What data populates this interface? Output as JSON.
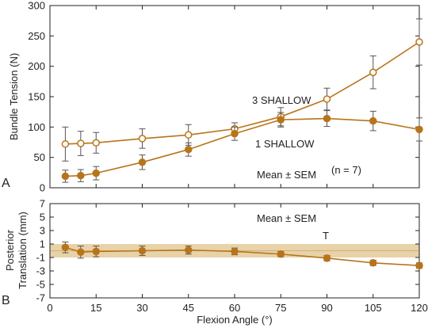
{
  "chart_data": [
    {
      "type": "line",
      "panel": "A",
      "ylabel": "Bundle Tension (N)",
      "xlabel": "",
      "xlim": [
        0,
        120
      ],
      "ylim": [
        0,
        300
      ],
      "xticks": [
        0,
        15,
        30,
        45,
        60,
        75,
        90,
        105,
        120
      ],
      "yticks": [
        0,
        50,
        100,
        150,
        200,
        250,
        300
      ],
      "series": [
        {
          "name": "3 SHALLOW",
          "marker": "open-circle",
          "color": "#b8741a",
          "x": [
            5,
            10,
            15,
            30,
            45,
            60,
            75,
            90,
            105,
            120
          ],
          "y": [
            72,
            73,
            74,
            81,
            87,
            97,
            117,
            146,
            190,
            240
          ],
          "err": [
            28,
            20,
            17,
            16,
            17,
            10,
            15,
            18,
            27,
            38
          ]
        },
        {
          "name": "1 SHALLOW",
          "marker": "filled-circle",
          "color": "#b8741a",
          "x": [
            5,
            10,
            15,
            30,
            45,
            60,
            75,
            90,
            105,
            120
          ],
          "y": [
            19,
            20,
            24,
            42,
            63,
            89,
            112,
            114,
            110,
            96
          ],
          "err": [
            10,
            10,
            11,
            12,
            11,
            11,
            12,
            13,
            16,
            19
          ]
        }
      ],
      "annotations": {
        "label_3": "3 SHALLOW",
        "label_1": "1 SHALLOW",
        "mean_sem": "Mean ± SEM",
        "n": "(n = 7)"
      }
    },
    {
      "type": "line",
      "panel": "B",
      "ylabel_line1": "Posterior",
      "ylabel_line2": "Translation (mm)",
      "xlabel": "Flexion Angle (°)",
      "xlim": [
        0,
        120
      ],
      "ylim": [
        -7,
        7
      ],
      "xticks": [
        0,
        15,
        30,
        45,
        60,
        75,
        90,
        105,
        120
      ],
      "yticks": [
        7,
        5,
        3,
        1,
        -1,
        -3,
        -5,
        -7
      ],
      "band": [
        -1,
        1
      ],
      "band_color": "#e8d2a8",
      "series": [
        {
          "name": "",
          "marker": "filled-circle",
          "color": "#b8741a",
          "x": [
            5,
            10,
            15,
            30,
            45,
            60,
            75,
            90,
            105,
            120
          ],
          "y": [
            0.5,
            -0.2,
            -0.1,
            0,
            0.1,
            -0.1,
            -0.5,
            -1.1,
            -1.8,
            -2.2
          ],
          "err": [
            0.8,
            0.9,
            0.8,
            0.7,
            0.6,
            0.5,
            0.4,
            0.4,
            0.4,
            0.4
          ]
        }
      ],
      "annotations": {
        "mean_sem": "Mean ± SEM",
        "t_mark": "T"
      }
    }
  ],
  "panel_letters": {
    "a": "A",
    "b": "B"
  }
}
